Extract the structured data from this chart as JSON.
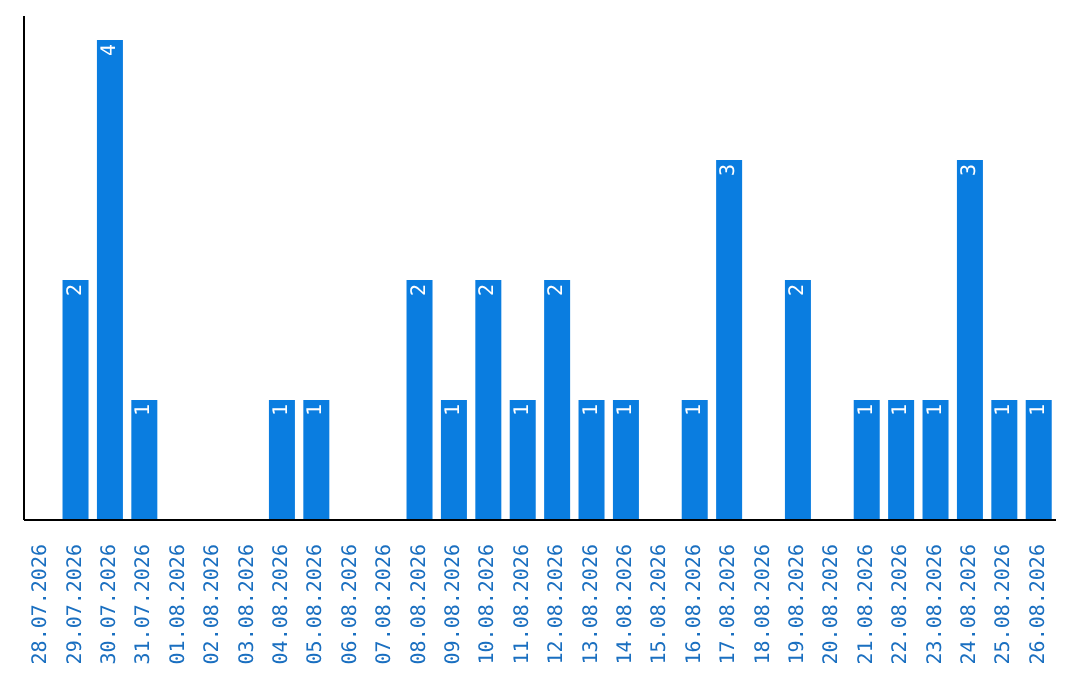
{
  "chart_data": {
    "type": "bar",
    "categories": [
      "28.07.2026",
      "29.07.2026",
      "30.07.2026",
      "31.07.2026",
      "01.08.2026",
      "02.08.2026",
      "03.08.2026",
      "04.08.2026",
      "05.08.2026",
      "06.08.2026",
      "07.08.2026",
      "08.08.2026",
      "09.08.2026",
      "10.08.2026",
      "11.08.2026",
      "12.08.2026",
      "13.08.2026",
      "14.08.2026",
      "15.08.2026",
      "16.08.2026",
      "17.08.2026",
      "18.08.2026",
      "19.08.2026",
      "20.08.2026",
      "21.08.2026",
      "22.08.2026",
      "23.08.2026",
      "24.08.2026",
      "25.08.2026",
      "26.08.2026"
    ],
    "values": [
      0,
      2,
      4,
      1,
      0,
      0,
      0,
      1,
      1,
      0,
      0,
      2,
      1,
      2,
      1,
      2,
      1,
      1,
      0,
      1,
      3,
      0,
      2,
      0,
      1,
      1,
      1,
      3,
      1,
      1
    ],
    "value_labels": [
      null,
      "2",
      "4",
      "1",
      null,
      null,
      null,
      "1",
      "1",
      null,
      null,
      "2",
      "1",
      "2",
      "1",
      "2",
      "1",
      "1",
      null,
      "1",
      "3",
      null,
      "2",
      null,
      "1",
      "1",
      "1",
      "3",
      "1",
      "1"
    ],
    "color": "#0a7de0",
    "tick_labels": "x"
  }
}
